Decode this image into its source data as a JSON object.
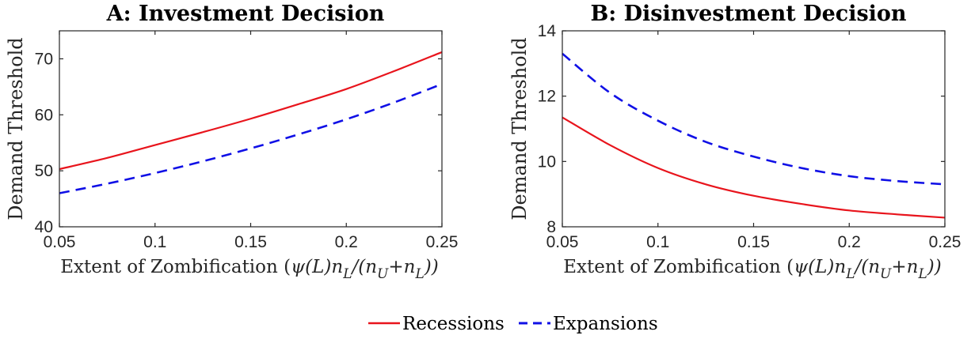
{
  "chart_data": [
    {
      "type": "line",
      "title": "A: Investment Decision",
      "xlabel": "Extent of Zombification (ψ(L)n_L/(n_U+n_L))",
      "ylabel": "Demand Threshold",
      "xlim": [
        0.05,
        0.25
      ],
      "ylim": [
        40,
        75
      ],
      "xticks": [
        0.05,
        0.1,
        0.15,
        0.2,
        0.25
      ],
      "xtick_labels": [
        "0.05",
        "0.1",
        "0.15",
        "0.2",
        "0.25"
      ],
      "yticks": [
        40,
        50,
        60,
        70
      ],
      "ytick_labels": [
        "40",
        "50",
        "60",
        "70"
      ],
      "grid": false,
      "x": [
        0.05,
        0.075,
        0.1,
        0.125,
        0.15,
        0.175,
        0.2,
        0.225,
        0.25
      ],
      "series": [
        {
          "name": "Recessions",
          "color": "#e8141c",
          "style": "solid",
          "values": [
            50.3,
            52.3,
            54.6,
            56.9,
            59.3,
            61.9,
            64.6,
            67.8,
            71.2
          ]
        },
        {
          "name": "Expansions",
          "color": "#1010e6",
          "style": "dashed",
          "values": [
            46.0,
            47.7,
            49.6,
            51.7,
            54.0,
            56.5,
            59.2,
            62.2,
            65.5
          ]
        }
      ]
    },
    {
      "type": "line",
      "title": "B: Disinvestment Decision",
      "xlabel": "Extent of Zombification (ψ(L)n_L/(n_U+n_L))",
      "ylabel": "Demand Threshold",
      "xlim": [
        0.05,
        0.25
      ],
      "ylim": [
        8,
        14
      ],
      "xticks": [
        0.05,
        0.1,
        0.15,
        0.2,
        0.25
      ],
      "xtick_labels": [
        "0.05",
        "0.1",
        "0.15",
        "0.2",
        "0.25"
      ],
      "yticks": [
        8,
        10,
        12,
        14
      ],
      "ytick_labels": [
        "8",
        "10",
        "12",
        "14"
      ],
      "grid": false,
      "x": [
        0.05,
        0.075,
        0.1,
        0.125,
        0.15,
        0.175,
        0.2,
        0.225,
        0.25
      ],
      "series": [
        {
          "name": "Recessions",
          "color": "#e8141c",
          "style": "solid",
          "values": [
            11.35,
            10.5,
            9.8,
            9.3,
            8.95,
            8.7,
            8.5,
            8.38,
            8.28
          ]
        },
        {
          "name": "Expansions",
          "color": "#1010e6",
          "style": "dashed",
          "values": [
            13.3,
            12.1,
            11.25,
            10.6,
            10.15,
            9.8,
            9.55,
            9.4,
            9.3
          ]
        }
      ]
    }
  ],
  "legend": {
    "placement": "bottom-center",
    "items": [
      {
        "label": "Recessions",
        "color": "#e8141c",
        "style": "solid"
      },
      {
        "label": "Expansions",
        "color": "#1010e6",
        "style": "dashed"
      }
    ]
  }
}
